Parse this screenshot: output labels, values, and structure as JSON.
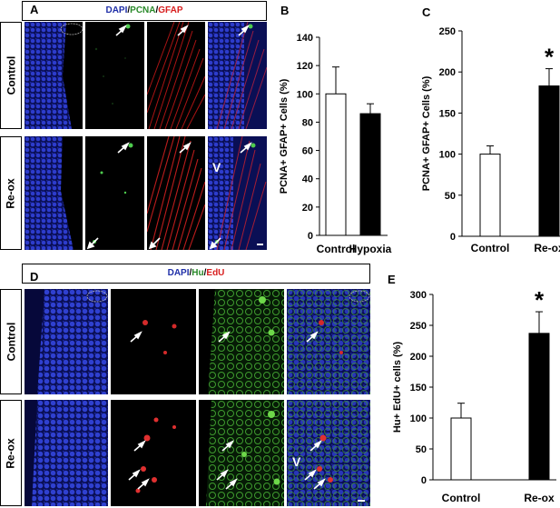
{
  "panelA": {
    "letter": "A",
    "header": {
      "dapi": "DAPI",
      "sep1": "/",
      "marker1": "PCNA",
      "sep2": "/",
      "marker2": "GFAP"
    },
    "rows": [
      "Control",
      "Re-ox"
    ],
    "ventricle_label": "V"
  },
  "panelD": {
    "letter": "D",
    "header": {
      "dapi": "DAPI",
      "sep1": "/",
      "marker1": "Hu",
      "sep2": "/",
      "marker2": "EdU"
    },
    "rows": [
      "Control",
      "Re-ox"
    ],
    "ventricle_label": "V"
  },
  "colors": {
    "dapi": "#1f2fa8",
    "pcna": "#2a8a2a",
    "gfap": "#d81e1e",
    "hu": "#2a8a2a",
    "edu": "#d81e1e",
    "bar_fill": "#000000",
    "bar_empty": "#ffffff"
  },
  "icons": [
    "arrow-icon",
    "scale-bar-icon"
  ],
  "chart_data": [
    {
      "panel": "B",
      "type": "bar",
      "categories": [
        "Control",
        "Hypoxia"
      ],
      "values": [
        100,
        86
      ],
      "errors": [
        19,
        7
      ],
      "fills": [
        "#ffffff",
        "#000000"
      ],
      "ylabel": "PCNA+ GFAP+ Cells (%)",
      "ylim": [
        0,
        140
      ],
      "yticks": [
        0,
        20,
        40,
        60,
        80,
        100,
        120,
        140
      ],
      "significance": [
        "",
        ""
      ]
    },
    {
      "panel": "C",
      "type": "bar",
      "categories": [
        "Control",
        "Re-ox"
      ],
      "values": [
        100,
        183
      ],
      "errors": [
        10,
        21
      ],
      "fills": [
        "#ffffff",
        "#000000"
      ],
      "ylabel": "PCNA+ GFAP+ Cells (%)",
      "ylim": [
        0,
        250
      ],
      "yticks": [
        0,
        50,
        100,
        150,
        200,
        250
      ],
      "significance": [
        "",
        "*"
      ]
    },
    {
      "panel": "E",
      "type": "bar",
      "categories": [
        "Control",
        "Re-ox"
      ],
      "values": [
        100,
        237
      ],
      "errors": [
        24,
        35
      ],
      "fills": [
        "#ffffff",
        "#000000"
      ],
      "ylabel": "Hu+ EdU+ cells (%)",
      "ylim": [
        0,
        300
      ],
      "yticks": [
        0,
        50,
        100,
        150,
        200,
        250,
        300
      ],
      "significance": [
        "",
        "*"
      ]
    }
  ]
}
